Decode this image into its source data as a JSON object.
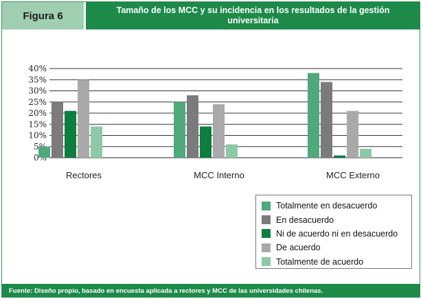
{
  "header": {
    "figure_label": "Figura 6",
    "title": "Tamaño de los MCC y su incidencia en los resultados de la gestión universitaria"
  },
  "chart_data": {
    "type": "bar",
    "title": "Tamaño de los MCC y su incidencia en los resultados de la gestión universitaria",
    "categories": [
      "Rectores",
      "MCC Interno",
      "MCC Externo"
    ],
    "series": [
      {
        "name": "Totalmente en desacuerdo",
        "color": "#4fa97b",
        "values": [
          5,
          25,
          38
        ]
      },
      {
        "name": "En desacuerdo",
        "color": "#7b7b7b",
        "values": [
          25,
          28,
          34
        ]
      },
      {
        "name": "Ni de acuerdo ni en desacuerdo",
        "color": "#0e7d40",
        "values": [
          21,
          14,
          1
        ]
      },
      {
        "name": "De acuerdo",
        "color": "#a9a9a9",
        "values": [
          35,
          24,
          21
        ]
      },
      {
        "name": "Totalmente de acuerdo",
        "color": "#8ec9a6",
        "values": [
          14,
          6,
          4
        ]
      }
    ],
    "yticks": [
      "0%",
      "5%",
      "10%",
      "15%",
      "20%",
      "25%",
      "30%",
      "35%",
      "40%"
    ],
    "ylim": [
      0,
      40
    ],
    "xlabel": "",
    "ylabel": "",
    "grid": true,
    "legend_position": "bottom-right"
  },
  "footer": {
    "source": "Fuente: Diseño propio, basado en encuesta aplicada a rectores y MCC de las universidades chilenas."
  }
}
